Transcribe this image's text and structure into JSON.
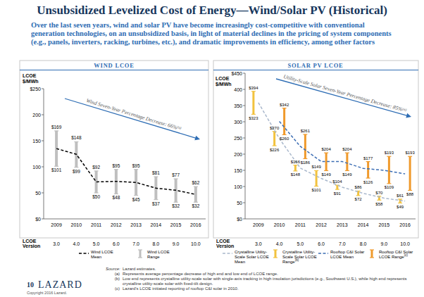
{
  "header": {
    "title": "Unsubsidized Levelized Cost of Energy—Wind/Solar PV (Historical)",
    "subtitle": "Over the last seven years, wind and solar PV have become increasingly cost-competitive with conventional generation technologies, on an unsubsidized basis, in light of material declines in the pricing of system components (e.g., panels, inverters, racking, turbines, etc.), and dramatic improvements in efficiency, among other factors"
  },
  "chart_data": [
    {
      "type": "line",
      "title": "WIND LCOE",
      "ylabel": [
        "LCOE",
        "$/MWh"
      ],
      "categories": [
        "2009",
        "2010",
        "2011",
        "2012",
        "2013",
        "2014",
        "2015",
        "2016"
      ],
      "version_label": [
        "LCOE",
        "Version"
      ],
      "versions": [
        "3.0",
        "4.0",
        "5.0",
        "6.0",
        "7.0",
        "8.0",
        "9.0",
        "10.0"
      ],
      "ylim": [
        0,
        250
      ],
      "yticks": [
        {
          "value": 0,
          "label": "$0"
        },
        50,
        100,
        150,
        200,
        {
          "value": 250,
          "label": "$250"
        }
      ],
      "grid": false,
      "legend": "bottom",
      "annotation": {
        "text": "Wind Seven-Year Percentage Decrease: 66%",
        "ref": "(a)"
      },
      "series": [
        {
          "name": "Wind LCOE Mean",
          "type": "line",
          "color": "#000000",
          "line_style": "dashed",
          "values": [
            135,
            124,
            71,
            72,
            70,
            59,
            55,
            47
          ]
        },
        {
          "name": "Wind LCOE Range",
          "type": "range",
          "color": "#bfbfbf",
          "data_labels": true,
          "values": [
            169,
            148,
            92,
            95,
            95,
            81,
            77,
            62
          ],
          "value_labels": [
            "$169",
            "$148",
            "$92",
            "$95",
            "$95",
            "$81",
            "$77",
            "$62"
          ],
          "low": [
            101,
            99,
            50,
            48,
            45,
            37,
            32,
            32
          ],
          "low_labels": [
            "$101",
            "$99",
            "$50",
            "$48",
            "$45",
            "$37",
            "$32",
            "$32"
          ]
        }
      ]
    },
    {
      "type": "line",
      "title": "SOLAR PV LCOE",
      "ylabel": [
        "LCOE",
        "$/MWh"
      ],
      "categories": [
        "2009",
        "2010",
        "2011",
        "2012",
        "2013",
        "2014",
        "2015",
        "2016"
      ],
      "version_label": [
        "LCOE",
        "Version"
      ],
      "versions": [
        "3.0",
        "4.0",
        "5.0",
        "6.0",
        "7.0",
        "8.0",
        "9.0",
        "10.0"
      ],
      "ylim": [
        0,
        450
      ],
      "yticks": [
        {
          "value": 0,
          "label": "$0"
        },
        50,
        100,
        150,
        200,
        250,
        300,
        350,
        400,
        {
          "value": 450,
          "label": "$450"
        }
      ],
      "grid": false,
      "legend": "bottom",
      "annotation": {
        "text": "Utility-Scale Solar Seven-Year Percentage Decrease: 85%",
        "ref": "(a)"
      },
      "series": [
        {
          "name": "Crystalline Utility-Scale Solar LCOE Mean",
          "type": "line",
          "color": "#a9b8cc",
          "line_style": "dashed",
          "values": [
            359,
            248,
            157,
            125,
            98,
            79,
            64,
            55
          ]
        },
        {
          "name": "Crystalline Utility-Scale Solar LCOE Range",
          "footnote_ref": "(b)",
          "type": "range",
          "color": "#f2c23e",
          "data_labels": true,
          "values": [
            394,
            270,
            166,
            149,
            104,
            86,
            70,
            61
          ],
          "value_labels": [
            "$394",
            "$270",
            "$166",
            "$149",
            "$104",
            "$86",
            "$70",
            "$61"
          ],
          "low": [
            323,
            226,
            148,
            101,
            91,
            72,
            58,
            49
          ],
          "low_labels": [
            "$323",
            "$226",
            "$148",
            "$101",
            "$91",
            "$72",
            "$58",
            "$49"
          ]
        },
        {
          "name": "Rooftop C&I Solar LCOE Mean",
          "type": "line",
          "color": "#3b6db3",
          "line_style": "dashed",
          "values": [
            null,
            301,
            224,
            177,
            177,
            156,
            150,
            139
          ]
        },
        {
          "name": "Rooftop C&I Solar LCOE Range",
          "footnote_ref": "(c)",
          "type": "range",
          "color": "#f09a2c",
          "data_labels": true,
          "values": [
            null,
            342,
            261,
            204,
            204,
            177,
            193,
            193
          ],
          "value_labels": [
            null,
            "$342",
            "$261",
            "$204",
            "$204",
            "$177",
            "$193",
            "$193"
          ],
          "low": [
            null,
            260,
            186,
            149,
            149,
            126,
            109,
            88
          ],
          "low_labels": [
            null,
            "$260",
            "$186",
            "$149",
            "$149",
            "$126",
            "$109",
            "$88"
          ]
        }
      ]
    }
  ],
  "footer": {
    "source_label": "Source:",
    "source": "Lazard estimates.",
    "notes": [
      {
        "ref": "(a)",
        "text": "Represents average percentage decrease of high end and low end of LCOE range."
      },
      {
        "ref": "(b)",
        "text": "Low end represents crystalline utility-scale solar with single-axis tracking in high insolation jurisdictions (e.g., Southwest U.S.), while high end represents crystalline utility-scale solar with fixed-tilt design."
      },
      {
        "ref": "(c)",
        "text": "Lazard's LCOE initiated reporting of rooftop C&I solar in 2010."
      }
    ],
    "page": "10",
    "brand": "LAZARD",
    "copyright": "Copyright 2016 Lazard."
  }
}
